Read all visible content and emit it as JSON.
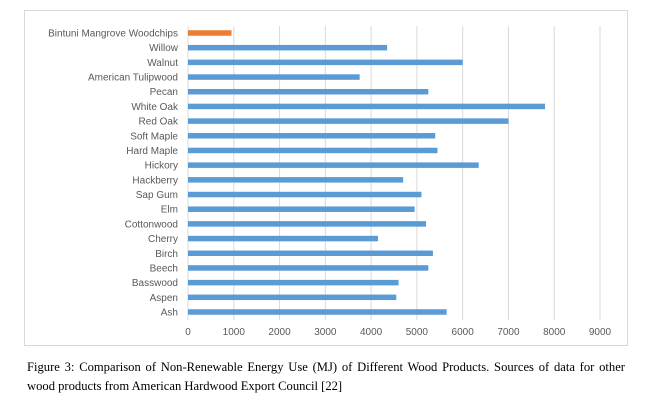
{
  "chart_data": {
    "type": "bar",
    "orientation": "horizontal",
    "categories": [
      "Bintuni Mangrove Woodchips",
      "Willow",
      "Walnut",
      "American Tulipwood",
      "Pecan",
      "White Oak",
      "Red Oak",
      "Soft Maple",
      "Hard Maple",
      "Hickory",
      "Hackberry",
      "Sap Gum",
      "Elm",
      "Cottonwood",
      "Cherry",
      "Birch",
      "Beech",
      "Basswood",
      "Aspen",
      "Ash"
    ],
    "values": [
      950,
      4350,
      6000,
      3750,
      5250,
      7800,
      7000,
      5400,
      5450,
      6350,
      4700,
      5100,
      4950,
      5200,
      4150,
      5350,
      5250,
      4600,
      4550,
      5650
    ],
    "xlim": [
      0,
      9000
    ],
    "xticks": [
      "0",
      "1000",
      "2000",
      "3000",
      "4000",
      "5000",
      "6000",
      "7000",
      "8000",
      "9000"
    ],
    "grid": "vertical",
    "title": "",
    "xlabel": "",
    "ylabel": "",
    "colors": {
      "highlight": "#ed7d31",
      "default": "#5b9bd5",
      "grid": "#d9d9d9"
    }
  },
  "caption": "Figure 3: Comparison of Non-Renewable Energy Use (MJ) of Different Wood Products. Sources of data for other wood products from American Hardwood Export Council [22]"
}
